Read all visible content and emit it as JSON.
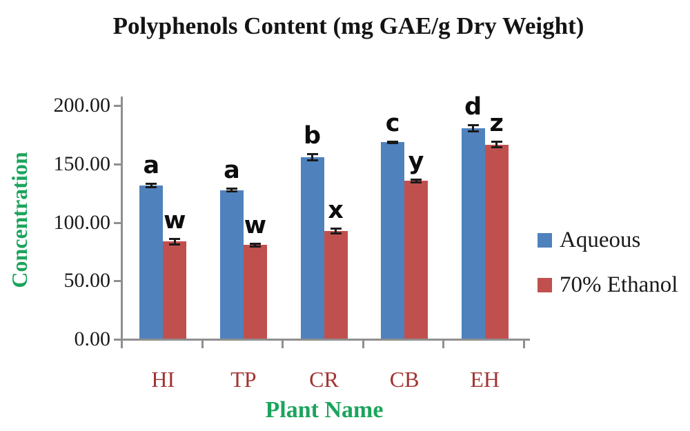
{
  "chart_data": {
    "type": "bar",
    "title": "Polyphenols Content (mg GAE/g Dry Weight)",
    "xlabel": "Plant Name",
    "ylabel": "Concentration",
    "categories": [
      "HI",
      "TP",
      "CR",
      "CB",
      "EH"
    ],
    "series": [
      {
        "name": "Aqueous",
        "color": "#4F81BD",
        "values": [
          131,
          127,
          155,
          168,
          180
        ],
        "errors": [
          2,
          1.5,
          3,
          1,
          3
        ],
        "letters": [
          "a",
          "a",
          "b",
          "c",
          "d"
        ]
      },
      {
        "name": "70% Ethanol",
        "color": "#C0504D",
        "values": [
          83,
          80,
          92,
          135,
          166
        ],
        "errors": [
          2.5,
          1.5,
          2.5,
          1.5,
          2.5
        ],
        "letters": [
          "w",
          "w",
          "x",
          "y",
          "z"
        ]
      }
    ],
    "ylim": [
      0,
      200
    ],
    "ytick_labels": [
      "0.00",
      "50.00",
      "100.00",
      "150.00",
      "200.00"
    ],
    "ytick_values": [
      0,
      50,
      100,
      150,
      200
    ],
    "grid": false,
    "legend_position": "right",
    "error_bars": true
  },
  "colors": {
    "axis": "#8f8f8f",
    "tick_label": "#1a1a1a",
    "category_label": "#A23431",
    "axis_title_green": "#1CA45C",
    "title": "#141414",
    "error_bar": "#1a1a1a"
  }
}
